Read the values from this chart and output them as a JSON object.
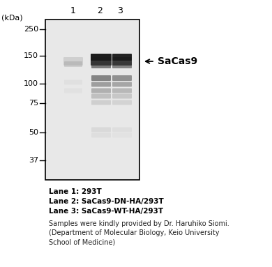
{
  "kda_label": "(kDa)",
  "lane_labels": [
    "1",
    "2",
    "3"
  ],
  "marker_labels": [
    "250",
    "150",
    "100",
    "75",
    "50",
    "37"
  ],
  "sacas9_label": "SaCas9",
  "background_color": "#ffffff",
  "lane_info": [
    "Lane 1: 293T",
    "Lane 2: SaCas9-DN-HA/293T",
    "Lane 3: SaCas9-WT-HA/293T"
  ],
  "footnote_lines": [
    "Samples were kindly provided by Dr. Haruhiko Siomi.",
    "(Department of Molecular Biology, Keio University",
    "School of Medicine)"
  ]
}
